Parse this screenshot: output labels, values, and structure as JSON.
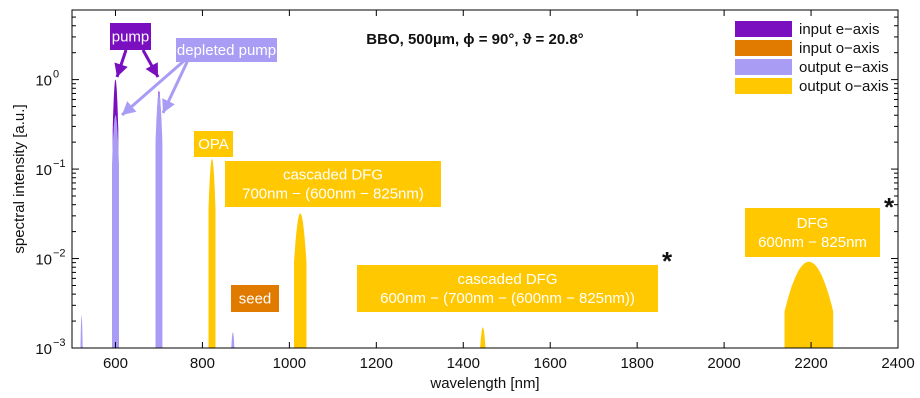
{
  "chart_data": {
    "type": "area",
    "title": "BBO, 500µm, ϕ = 90°, ϑ = 20.8°",
    "xlabel": "wavelength [nm]",
    "ylabel": "spectral intensity [a.u.]",
    "xlim": [
      500,
      2400
    ],
    "ylim": [
      0.001,
      6
    ],
    "yscale": "log",
    "x_ticks": [
      600,
      800,
      1000,
      1200,
      1400,
      1600,
      1800,
      2000,
      2200,
      2400
    ],
    "y_ticks": [
      {
        "value": 0.001,
        "base": "10",
        "exp": "−3"
      },
      {
        "value": 0.01,
        "base": "10",
        "exp": "−2"
      },
      {
        "value": 0.1,
        "base": "10",
        "exp": "−1"
      },
      {
        "value": 1,
        "base": "10",
        "exp": "0"
      }
    ],
    "legend_position": "top-right",
    "series": [
      {
        "name": "input e−axis",
        "color": "#7a0fbf",
        "peaks": [
          {
            "center": 600,
            "width": 4,
            "peak": 1.0
          },
          {
            "center": 700,
            "width": 4,
            "peak": 0.75
          }
        ]
      },
      {
        "name": "input o−axis",
        "color": "#e07b00",
        "peaks": [
          {
            "center": 825,
            "width": 3,
            "peak": 0.003
          }
        ]
      },
      {
        "name": "output e−axis",
        "color": "#a89cf5",
        "peaks": [
          {
            "center": 522,
            "width": 2,
            "peak": 0.0023
          },
          {
            "center": 600,
            "width": 5,
            "peak": 0.4
          },
          {
            "center": 700,
            "width": 5,
            "peak": 0.7
          },
          {
            "center": 870,
            "width": 4,
            "peak": 0.0015
          }
        ]
      },
      {
        "name": "output o−axis",
        "color": "#ffc800",
        "peaks": [
          {
            "center": 822,
            "width": 5,
            "peak": 0.13
          },
          {
            "center": 1025,
            "width": 9,
            "peak": 0.032
          },
          {
            "center": 1445,
            "width": 6,
            "peak": 0.0017
          },
          {
            "center": 2195,
            "width": 35,
            "peak": 0.0092
          }
        ]
      }
    ],
    "annotations": [
      {
        "lines": [
          "pump"
        ],
        "color": "#7a0fbf"
      },
      {
        "lines": [
          "depleted pump"
        ],
        "color": "#a89cf5"
      },
      {
        "lines": [
          "OPA"
        ],
        "color": "#ffc800"
      },
      {
        "lines": [
          "cascaded DFG",
          "700nm − (600nm − 825nm)"
        ],
        "color": "#ffc800"
      },
      {
        "lines": [
          "seed"
        ],
        "color": "#e07b00"
      },
      {
        "lines": [
          "cascaded DFG",
          "600nm − (700nm − (600nm − 825nm))"
        ],
        "color": "#ffc800"
      },
      {
        "lines": [
          "DFG",
          "600nm − 825nm"
        ],
        "color": "#ffc800"
      }
    ],
    "markers": [
      "*",
      "*"
    ]
  }
}
